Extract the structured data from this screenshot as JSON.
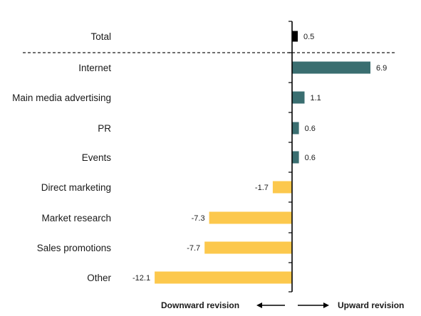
{
  "chart_data": {
    "type": "bar",
    "orientation": "horizontal",
    "categories": [
      "Total",
      "Internet",
      "Main media advertising",
      "PR",
      "Events",
      "Direct marketing",
      "Market research",
      "Sales promotions",
      "Other"
    ],
    "values": [
      0.5,
      6.9,
      1.1,
      0.6,
      0.6,
      -1.7,
      -7.3,
      -7.7,
      -12.1
    ],
    "value_labels": [
      "0.5",
      "6.9",
      "1.1",
      "0.6",
      "0.6",
      "-1.7",
      "-7.3",
      "-7.7",
      "-12.1"
    ],
    "title": "",
    "xlabel": "",
    "ylabel": "",
    "xlim": [
      -12.6,
      8.0
    ],
    "grid": false,
    "legend": "none",
    "colors": {
      "total": "#000000",
      "positive": "#3a6e70",
      "negative": "#fcc84d",
      "axis": "#000000",
      "text": "#1a1a1a"
    },
    "footer": {
      "left": "Downward revision",
      "right": "Upward revision"
    }
  }
}
